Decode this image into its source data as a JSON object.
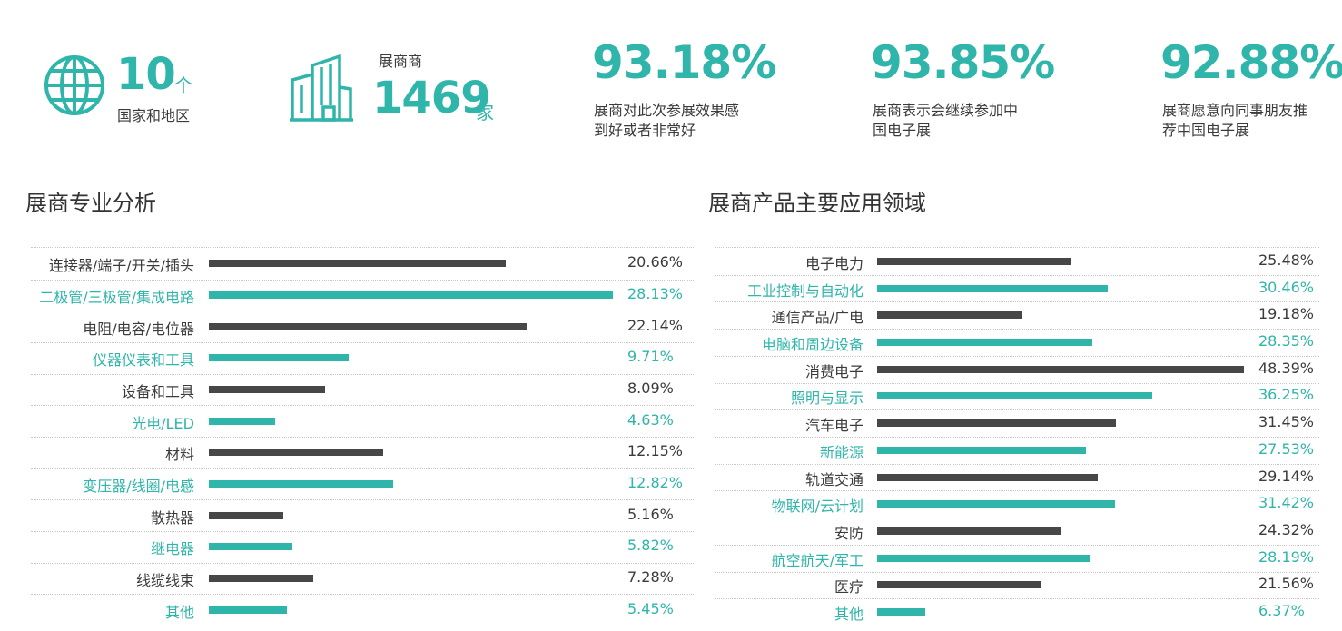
{
  "colors": {
    "accent": "#2fb5aa",
    "dark": "#474747"
  },
  "stats": {
    "countries": {
      "icon": "globe-icon",
      "number": "10",
      "unit": "个",
      "label": "国家和地区"
    },
    "exhibitors": {
      "icon": "building-icon",
      "label": "展商商",
      "number": "1469",
      "unit": "家"
    },
    "s1": {
      "percent": "93.18%",
      "line1": "展商对此次参展效果感",
      "line2": "到好或者非常好"
    },
    "s2": {
      "percent": "93.85%",
      "line1": "展商表示会继续参加中",
      "line2": "国电子展"
    },
    "s3": {
      "percent": "92.88%",
      "line1": "展商愿意向同事朋友推",
      "line2": "荐中国电子展"
    }
  },
  "left_title": "展商专业分析",
  "right_title": "展商产品主要应用领域",
  "chart_data": [
    {
      "type": "bar",
      "orientation": "horizontal",
      "title": "展商专业分析",
      "categories": [
        "连接器/端子/开关/插头",
        "二极管/三极管/集成电路",
        "电阻/电容/电位器",
        "仪器仪表和工具",
        "设备和工具",
        "光电/LED",
        "材料",
        "变压器/线圈/电感",
        "散热器",
        "继电器",
        "线缆线束",
        "其他"
      ],
      "values": [
        20.66,
        28.13,
        22.14,
        9.71,
        8.09,
        4.63,
        12.15,
        12.82,
        5.16,
        5.82,
        7.28,
        5.45
      ],
      "labels": [
        "20.66%",
        "28.13%",
        "22.14%",
        "9.71%",
        "8.09%",
        "4.63%",
        "12.15%",
        "12.82%",
        "5.16%",
        "5.82%",
        "7.28%",
        "5.45%"
      ],
      "xlim": [
        0,
        28.13
      ],
      "grid": false
    },
    {
      "type": "bar",
      "orientation": "horizontal",
      "title": "展商产品主要应用领域",
      "categories": [
        "电子电力",
        "工业控制与自动化",
        "通信产品/广电",
        "电脑和周边设备",
        "消费电子",
        "照明与显示",
        "汽车电子",
        "新能源",
        "轨道交通",
        "物联网/云计划",
        "安防",
        "航空航天/军工",
        "医疗",
        "其他"
      ],
      "values": [
        25.48,
        30.46,
        19.18,
        28.35,
        48.39,
        36.25,
        31.45,
        27.53,
        29.14,
        31.42,
        24.32,
        28.19,
        21.56,
        6.37
      ],
      "labels": [
        "25.48%",
        "30.46%",
        "19.18%",
        "28.35%",
        "48.39%",
        "36.25%",
        "31.45%",
        "27.53%",
        "29.14%",
        "31.42%",
        "24.32%",
        "28.19%",
        "21.56%",
        "6.37%"
      ],
      "xlim": [
        0,
        48.39
      ],
      "grid": false
    }
  ]
}
